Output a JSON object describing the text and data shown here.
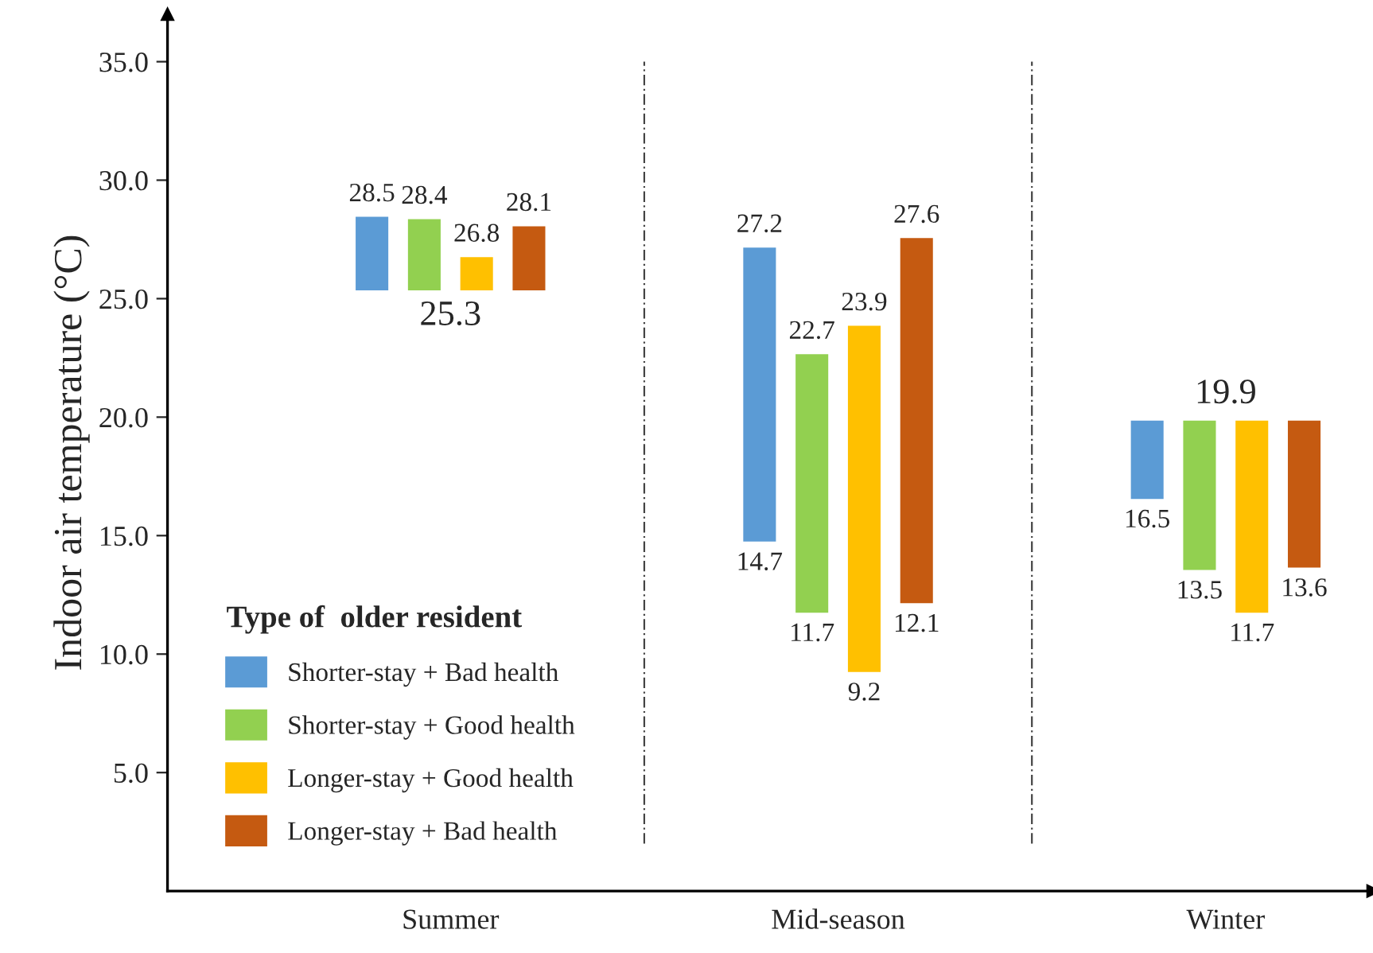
{
  "chart_data": {
    "type": "bar",
    "ylabel": "Indoor air temperature (°C)",
    "legend_title": "Type of  older resident",
    "categories": [
      "Summer",
      "Mid-season",
      "Winter"
    ],
    "series": [
      {
        "name": "Shorter-stay + Bad health",
        "color": "#5b9bd5",
        "base": [
          25.3,
          14.7,
          16.5
        ],
        "values": [
          3.2,
          12.5,
          3.4
        ]
      },
      {
        "name": "Shorter-stay + Good health",
        "color": "#92d050",
        "base": [
          25.3,
          11.7,
          13.5
        ],
        "values": [
          3.1,
          11.0,
          6.4
        ]
      },
      {
        "name": "Longer-stay + Good health",
        "color": "#ffc000",
        "base": [
          25.3,
          9.2,
          11.7
        ],
        "values": [
          1.5,
          14.7,
          8.2
        ]
      },
      {
        "name": "Longer-stay + Bad health",
        "color": "#c55a11",
        "base": [
          25.3,
          12.1,
          13.6
        ],
        "values": [
          2.8,
          15.5,
          6.3
        ]
      }
    ],
    "annotations": [
      "28.5",
      "28.4",
      "26.8",
      "28.1",
      "25.3",
      "27.2",
      "22.7",
      "23.9",
      "27.6",
      "14.7",
      "11.7",
      "9.2",
      "12.1",
      "19.9",
      "16.5",
      "13.5",
      "11.7",
      "13.6"
    ],
    "ylim": [
      0,
      37
    ],
    "yticks": [
      {
        "value": 5,
        "label": "5.0"
      },
      {
        "value": 10,
        "label": "10.0"
      },
      {
        "value": 15,
        "label": "15.0"
      },
      {
        "value": 20,
        "label": "20.0"
      },
      {
        "value": 25,
        "label": "25.0"
      },
      {
        "value": 30,
        "label": "30.0"
      },
      {
        "value": 35,
        "label": "35.0"
      }
    ],
    "grid": false,
    "legend": "bottom left"
  }
}
